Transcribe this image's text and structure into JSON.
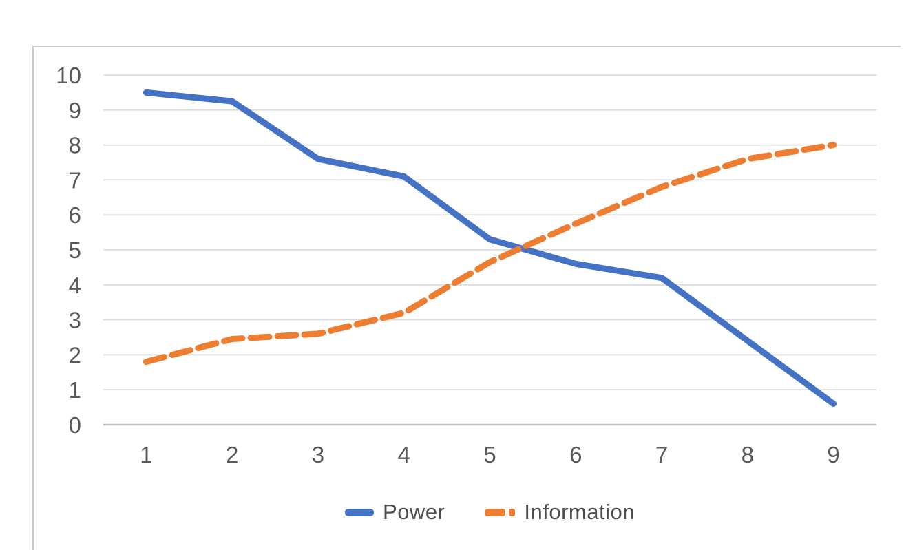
{
  "chart_data": {
    "type": "line",
    "title": "",
    "xlabel": "",
    "ylabel": "",
    "categories": [
      "1",
      "2",
      "3",
      "4",
      "5",
      "6",
      "7",
      "8",
      "9"
    ],
    "series": [
      {
        "name": "Power",
        "color": "#4472c4",
        "line_style": "solid",
        "values": [
          9.5,
          9.25,
          7.6,
          7.1,
          5.3,
          4.6,
          4.2,
          2.4,
          0.6
        ]
      },
      {
        "name": "Information",
        "color": "#ed7d31",
        "line_style": "dashed",
        "values": [
          1.8,
          2.45,
          2.6,
          3.2,
          4.65,
          5.75,
          6.8,
          7.6,
          8.0
        ]
      }
    ],
    "y_axis": {
      "min": 0,
      "max": 10,
      "tick_interval": 1,
      "tick_labels": [
        "0",
        "1",
        "2",
        "3",
        "4",
        "5",
        "6",
        "7",
        "8",
        "9",
        "10"
      ]
    },
    "x_axis": {
      "tick_labels": [
        "1",
        "2",
        "3",
        "4",
        "5",
        "6",
        "7",
        "8",
        "9"
      ]
    },
    "legend": {
      "position": "bottom-center",
      "entries": [
        "Power",
        "Information"
      ]
    },
    "grid": "horizontal",
    "colors": {
      "gridline": "#d9d9d9",
      "axis_line": "#bfbfbf",
      "tick_label": "#595959",
      "legend_text": "#4d4d4d",
      "chart_border": "#c9c9c9",
      "background": "#ffffff"
    }
  }
}
